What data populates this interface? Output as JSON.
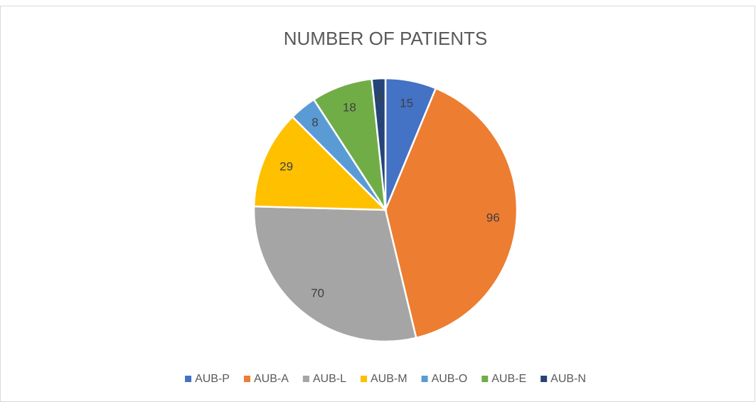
{
  "chart_data": {
    "type": "pie",
    "title": "NUMBER OF PATIENTS",
    "categories": [
      "AUB-P",
      "AUB-A",
      "AUB-L",
      "AUB-M",
      "AUB-O",
      "AUB-E",
      "AUB-N"
    ],
    "values": [
      15,
      96,
      70,
      29,
      8,
      18,
      4
    ],
    "colors": [
      "#4472c4",
      "#ed7d31",
      "#a5a5a5",
      "#ffc000",
      "#5b9bd5",
      "#70ad47",
      "#264478"
    ],
    "legend": "bottom"
  }
}
